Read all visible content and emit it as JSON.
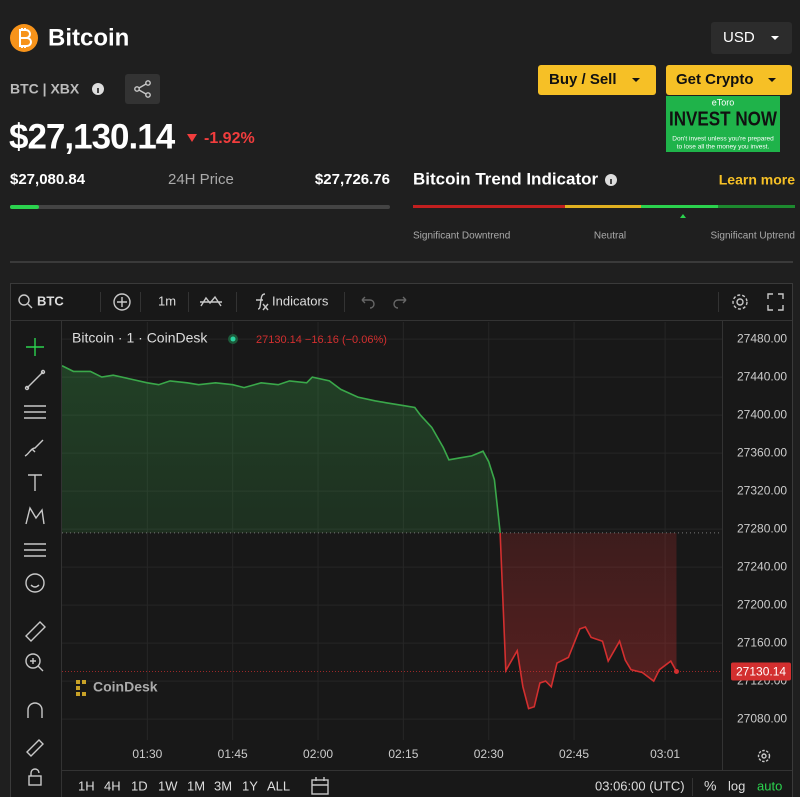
{
  "header": {
    "title": "Bitcoin",
    "currency": "USD",
    "pair": "BTC | XBX",
    "buy_sell": "Buy / Sell",
    "get_crypto": "Get Crypto"
  },
  "ad": {
    "brand": "eToro",
    "headline": "INVEST NOW",
    "disclaimer": [
      "Don't invest unless you're prepared",
      "to lose all the money you invest."
    ]
  },
  "price": {
    "current": {
      "value": 27130.14,
      "label": "$27,130.14"
    },
    "change": "-1.92%",
    "low": {
      "value": 27080.84,
      "label": "$27,080.84"
    },
    "range_label": "24H Price",
    "high": {
      "value": 27726.76,
      "label": "$27,726.76"
    }
  },
  "trend": {
    "title": "Bitcoin Trend Indicator",
    "learn_more": "Learn more",
    "labels": [
      "Significant Downtrend",
      "Neutral",
      "Significant Uptrend"
    ]
  },
  "toolbar": {
    "symbol": "BTC",
    "interval": "1m",
    "indicators": "Indicators"
  },
  "chart_data": {
    "type": "line",
    "legend_title": "Bitcoin · 1 · CoinDesk",
    "legend_values": "27130.14 −16.16 (−0.06%)",
    "watermark": "CoinDesk",
    "x": [
      "01:15",
      "01:17",
      "01:20",
      "01:22",
      "01:24",
      "01:27",
      "01:30",
      "01:32",
      "01:34",
      "01:37",
      "01:39",
      "01:42",
      "01:45",
      "01:47",
      "01:50",
      "01:53",
      "01:55",
      "01:58",
      "01:59",
      "02:02",
      "02:04",
      "02:07",
      "02:10",
      "02:12",
      "02:15",
      "02:17",
      "02:18",
      "02:20",
      "02:22",
      "02:23",
      "02:25",
      "02:27",
      "02:29",
      "02:30",
      "02:31",
      "02:32",
      "02:33",
      "02:35",
      "02:36",
      "02:37",
      "02:38",
      "02:39",
      "02:40",
      "02:41",
      "02:42",
      "02:44",
      "02:46",
      "02:47",
      "02:48",
      "02:50",
      "02:51",
      "02:53",
      "02:54",
      "02:55",
      "02:57",
      "02:59",
      "03:00",
      "03:02",
      "03:03"
    ],
    "values": [
      27452,
      27446,
      27446,
      27440,
      27442,
      27438,
      27434,
      27432,
      27436,
      27434,
      27432,
      27434,
      27432,
      27429,
      27434,
      27432,
      27436,
      27434,
      27440,
      27436,
      27427,
      27419,
      27415,
      27413,
      27410,
      27408,
      27400,
      27387,
      27366,
      27353,
      27355,
      27357,
      27362,
      27351,
      27332,
      27277,
      27131,
      27152,
      27114,
      27091,
      27093,
      27118,
      27120,
      27114,
      27139,
      27145,
      27175,
      27177,
      27166,
      27162,
      27141,
      27162,
      27142,
      27132,
      27129,
      27120,
      27132,
      27141,
      27130.14
    ],
    "baseline": 27276,
    "up_color": "#3aa84a",
    "down_color": "#d32f2f",
    "xlim": [
      "01:15",
      "03:11"
    ],
    "xticks": [
      "01:30",
      "01:45",
      "02:00",
      "02:15",
      "02:30",
      "02:45",
      "03:01"
    ],
    "ylim": [
      27058,
      27498
    ],
    "yticks": [
      {
        "value": 27080,
        "label": "27080.00"
      },
      {
        "value": 27120,
        "label": "27120.00"
      },
      {
        "value": 27160,
        "label": "27160.00"
      },
      {
        "value": 27200,
        "label": "27200.00"
      },
      {
        "value": 27240,
        "label": "27240.00"
      },
      {
        "value": 27280,
        "label": "27280.00"
      },
      {
        "value": 27320,
        "label": "27320.00"
      },
      {
        "value": 27360,
        "label": "27360.00"
      },
      {
        "value": 27400,
        "label": "27400.00"
      },
      {
        "value": 27440,
        "label": "27440.00"
      },
      {
        "value": 27480,
        "label": "27480.00"
      }
    ],
    "grid": true
  },
  "bottom_bar": {
    "ranges": [
      "1H",
      "4H",
      "1D",
      "1W",
      "1M",
      "3M",
      "1Y",
      "ALL"
    ],
    "time": "03:06:00 (UTC)",
    "percent": "%",
    "log": "log",
    "auto": "auto"
  }
}
